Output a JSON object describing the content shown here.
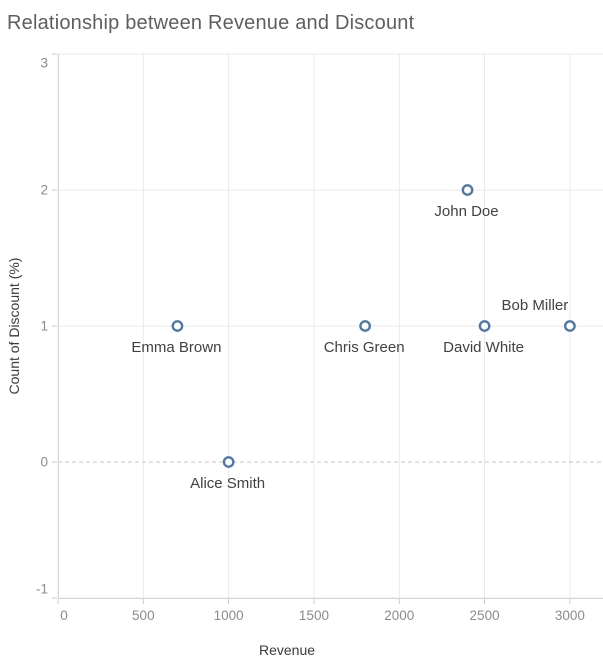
{
  "chart_data": {
    "type": "scatter",
    "title": "Relationship between Revenue and Discount",
    "xlabel": "Revenue",
    "ylabel": "Count of Discount (%)",
    "xlim": [
      0,
      3194
    ],
    "ylim": [
      -1,
      3
    ],
    "x_ticks": [
      0,
      500,
      1000,
      1500,
      2000,
      2500,
      3000
    ],
    "y_ticks": [
      -1,
      0,
      1,
      2,
      3
    ],
    "grid": true,
    "zero_line_style": "dashed",
    "legend": "none",
    "marker_color": "#4e79a7",
    "marker_fill": "#ffffff",
    "points": [
      {
        "label": "Emma Brown",
        "x": 700,
        "y": 1,
        "label_position": "below"
      },
      {
        "label": "Alice Smith",
        "x": 1000,
        "y": 0,
        "label_position": "below"
      },
      {
        "label": "Chris Green",
        "x": 1800,
        "y": 1,
        "label_position": "below"
      },
      {
        "label": "John Doe",
        "x": 2400,
        "y": 2,
        "label_position": "below"
      },
      {
        "label": "David White",
        "x": 2500,
        "y": 1,
        "label_position": "below"
      },
      {
        "label": "Bob Miller",
        "x": 3000,
        "y": 1,
        "label_position": "above-left"
      }
    ]
  }
}
